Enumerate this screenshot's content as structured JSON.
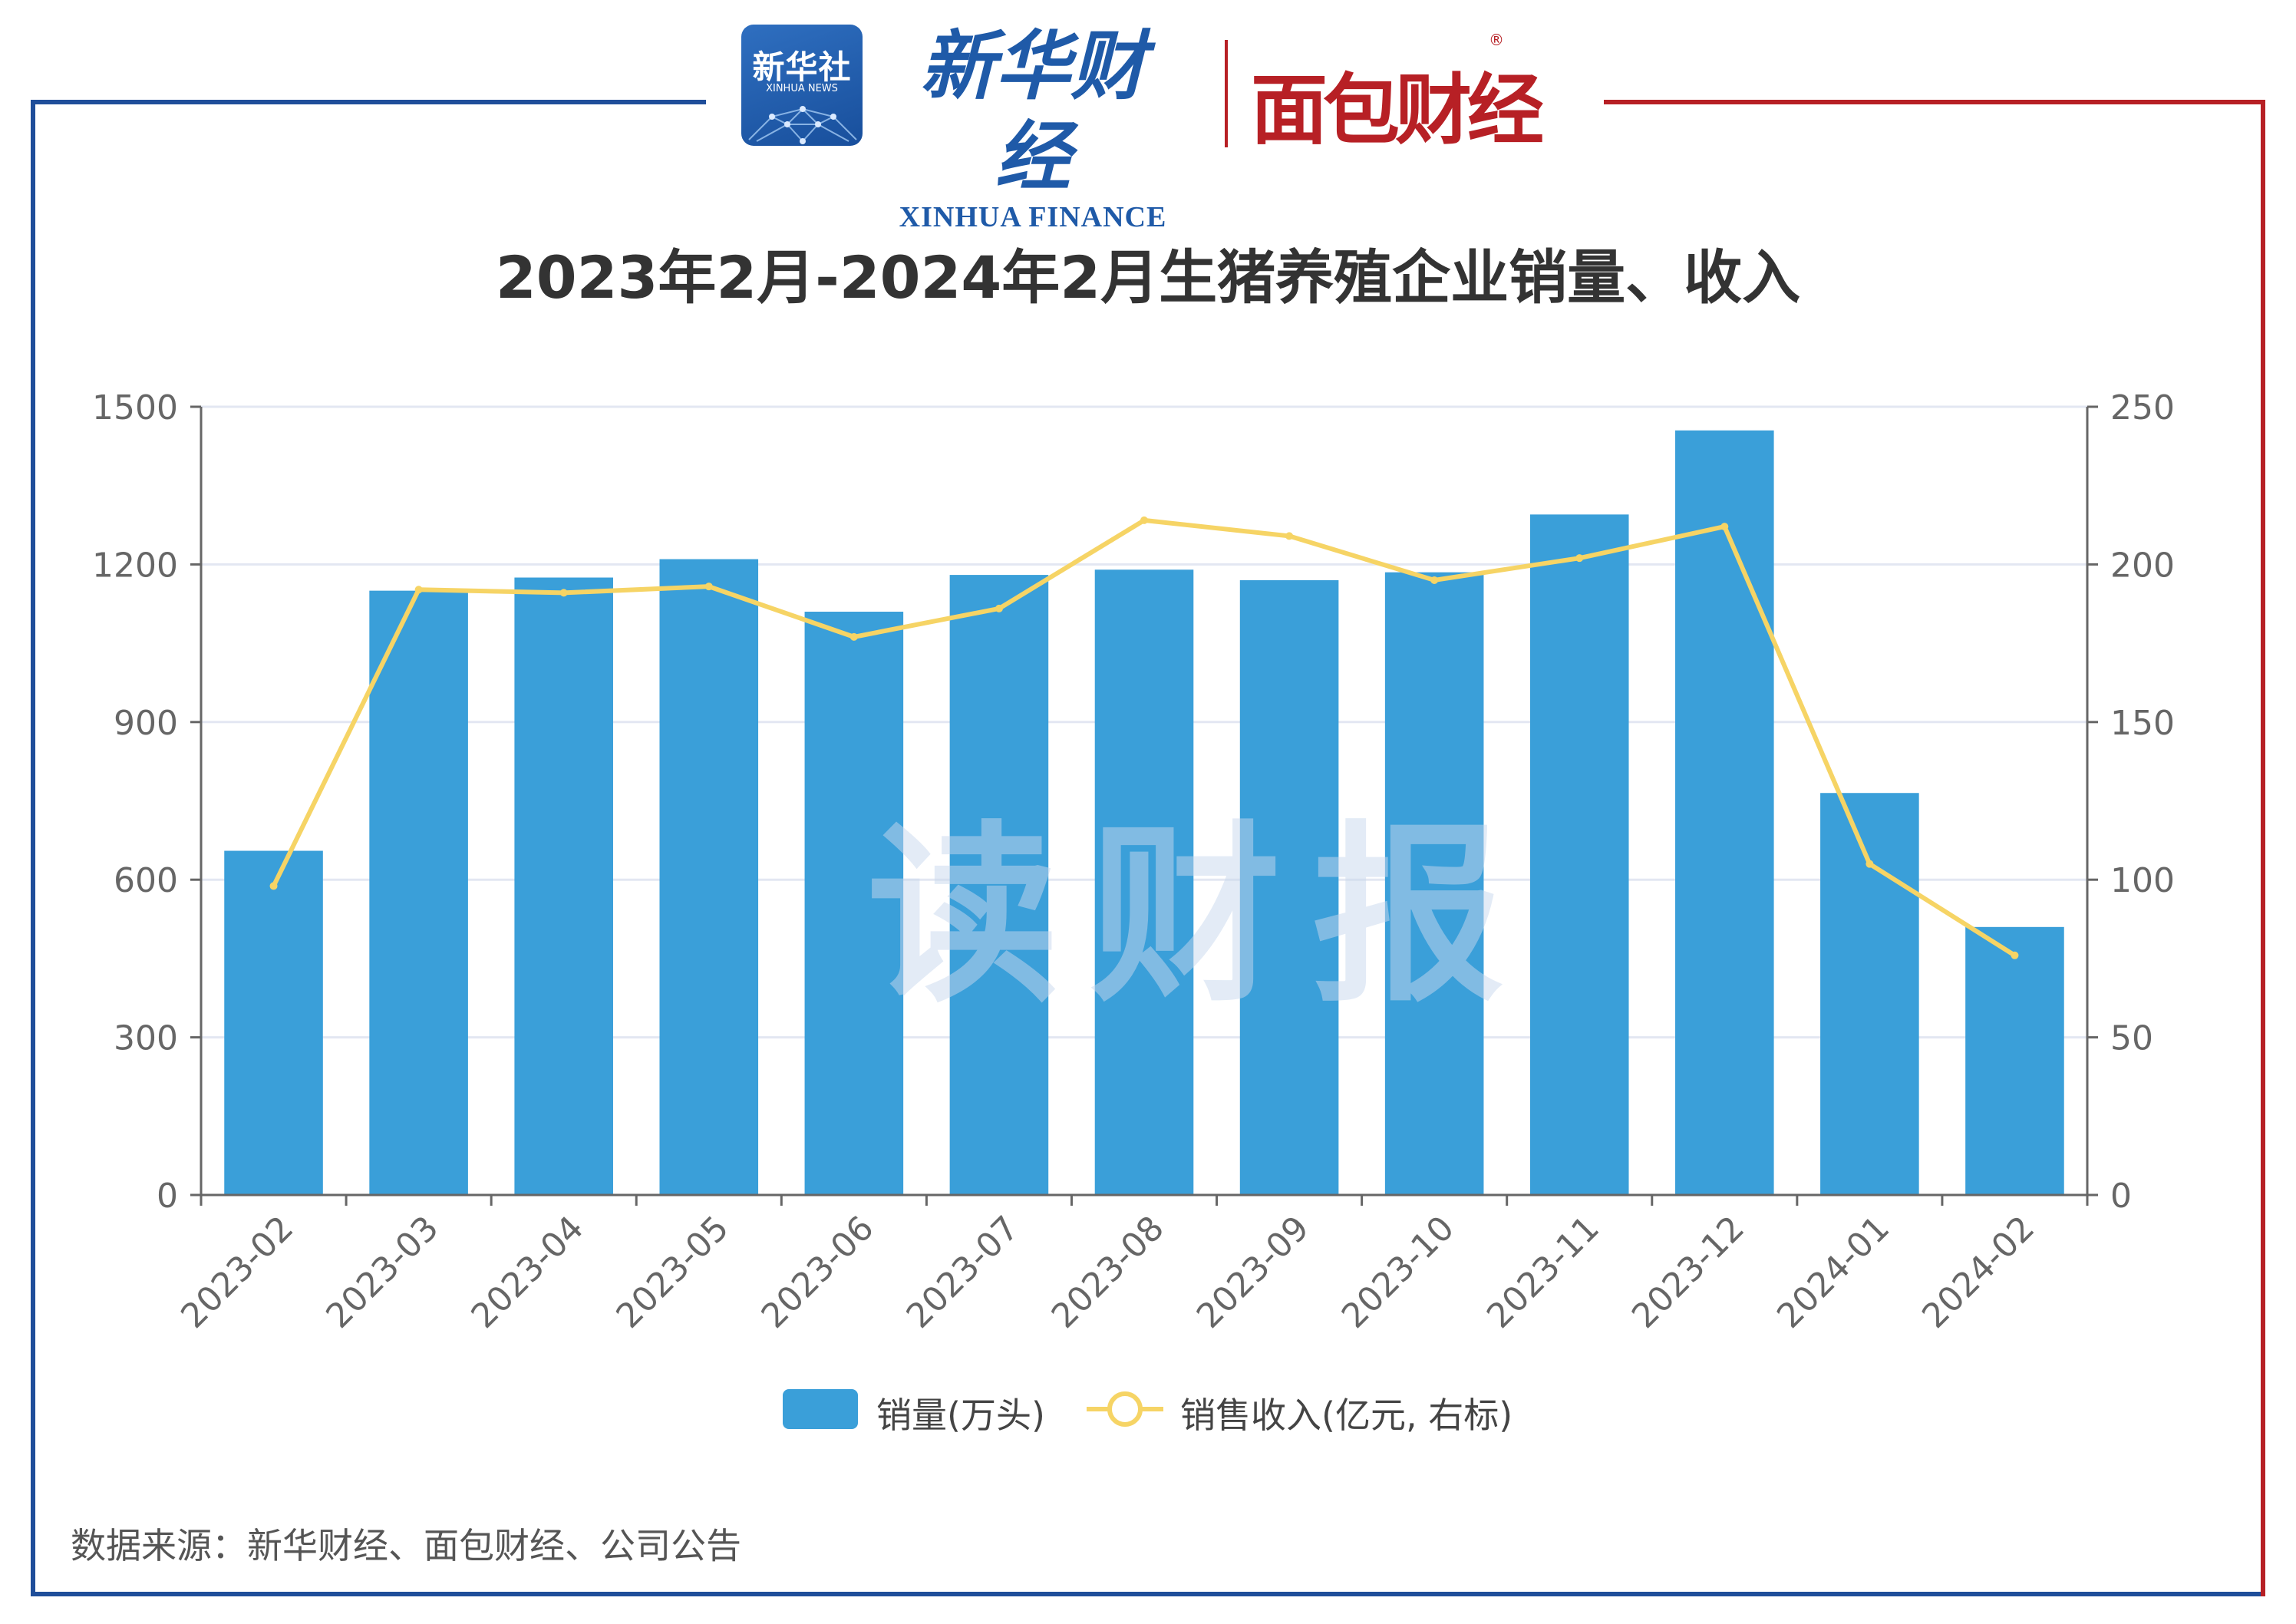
{
  "header": {
    "xinhua_logo": "新华社",
    "xinhua_logo_en": "XINHUA NEWS",
    "brand_cn": "新华财经",
    "brand_en": "XINHUA FINANCE",
    "brand2_cn": "面包财经",
    "registered_mark": "®"
  },
  "frame_colors": {
    "left": "#1f4e9a",
    "right": "#b72025"
  },
  "watermark": "读财报",
  "footer": {
    "source": "数据来源：新华财经、面包财经、公司公告"
  },
  "chart_data": {
    "type": "bar",
    "title": "2023年2月-2024年2月生猪养殖企业销量、收入",
    "categories": [
      "2023-02",
      "2023-03",
      "2023-04",
      "2023-05",
      "2023-06",
      "2023-07",
      "2023-08",
      "2023-09",
      "2023-10",
      "2023-11",
      "2023-12",
      "2024-01",
      "2024-02"
    ],
    "series": [
      {
        "name": "销量(万头)",
        "type": "bar",
        "axis": "left",
        "color": "#3a9fd9",
        "values": [
          655,
          1150,
          1175,
          1210,
          1110,
          1180,
          1190,
          1170,
          1185,
          1295,
          1455,
          765,
          510
        ]
      },
      {
        "name": "销售收入(亿元, 右标)",
        "type": "line",
        "axis": "right",
        "color": "#f6d465",
        "values": [
          98,
          192,
          191,
          193,
          177,
          186,
          214,
          209,
          195,
          202,
          212,
          105,
          76
        ]
      }
    ],
    "y_left": {
      "min": 0,
      "max": 1500,
      "ticks": [
        0,
        300,
        600,
        900,
        1200,
        1500
      ]
    },
    "y_right": {
      "min": 0,
      "max": 250,
      "ticks": [
        0,
        50,
        100,
        150,
        200,
        250
      ]
    },
    "grid": true,
    "legend_position": "bottom"
  }
}
